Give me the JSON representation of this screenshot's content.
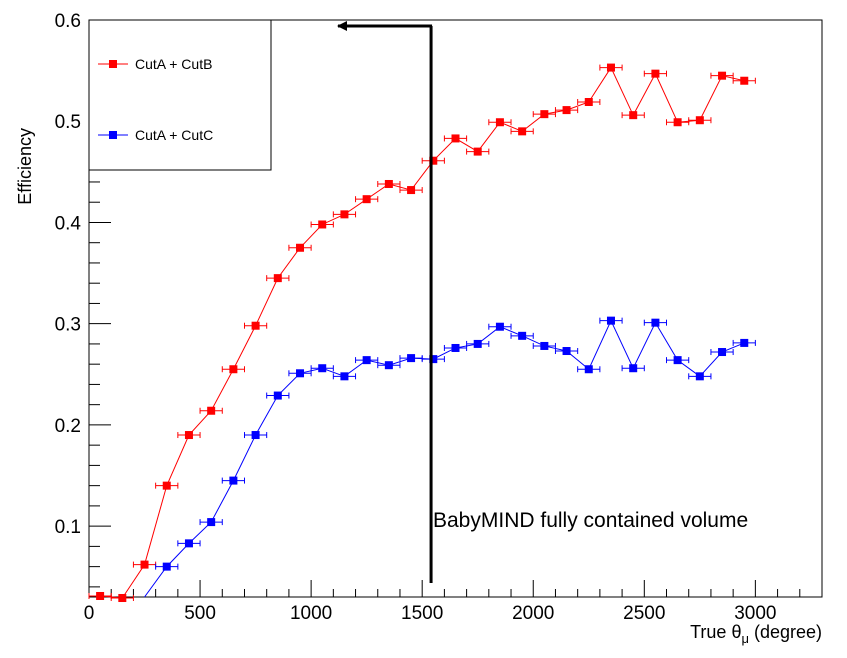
{
  "chart_data": {
    "type": "line",
    "xlabel": "True θ",
    "xlabel_sub": "μ",
    "xlabel_unit": " (degree)",
    "ylabel": "Efficiency",
    "xlim": [
      0,
      3300
    ],
    "ylim": [
      0.03,
      0.6
    ],
    "xticks": [
      0,
      500,
      1000,
      1500,
      2000,
      2500,
      3000
    ],
    "yticks": [
      0.1,
      0.2,
      0.3,
      0.4,
      0.5,
      0.6
    ],
    "grid": false,
    "legend_position": "top-left",
    "series": [
      {
        "name": "CutA + CutB",
        "color": "#ff0000",
        "x": [
          50,
          150,
          250,
          350,
          450,
          550,
          650,
          750,
          850,
          950,
          1050,
          1150,
          1250,
          1350,
          1450,
          1550,
          1650,
          1750,
          1850,
          1950,
          2050,
          2150,
          2250,
          2350,
          2450,
          2550,
          2650,
          2750,
          2850,
          2950
        ],
        "y": [
          0.031,
          0.029,
          0.062,
          0.14,
          0.19,
          0.214,
          0.255,
          0.298,
          0.345,
          0.375,
          0.398,
          0.408,
          0.423,
          0.438,
          0.432,
          0.461,
          0.483,
          0.47,
          0.499,
          0.49,
          0.507,
          0.511,
          0.519,
          0.553,
          0.506,
          0.547,
          0.499,
          0.501,
          0.545,
          0.54
        ],
        "xerr": 50
      },
      {
        "name": "CutA + CutC",
        "color": "#0000ff",
        "x": [
          350,
          450,
          550,
          650,
          750,
          850,
          950,
          1050,
          1150,
          1250,
          1350,
          1450,
          1550,
          1650,
          1750,
          1850,
          1950,
          2050,
          2150,
          2250,
          2350,
          2450,
          2550,
          2650,
          2750,
          2850,
          2950
        ],
        "y": [
          0.06,
          0.083,
          0.104,
          0.145,
          0.19,
          0.229,
          0.251,
          0.256,
          0.248,
          0.264,
          0.259,
          0.266,
          0.265,
          0.276,
          0.28,
          0.297,
          0.288,
          0.278,
          0.273,
          0.255,
          0.303,
          0.256,
          0.301,
          0.264,
          0.248,
          0.272,
          0.281
        ],
        "xerr": 50,
        "line_start": {
          "x": 250,
          "y": 0.03
        }
      }
    ],
    "annotation": {
      "text": "BabyMIND fully contained volume",
      "line_x": 1540
    }
  }
}
